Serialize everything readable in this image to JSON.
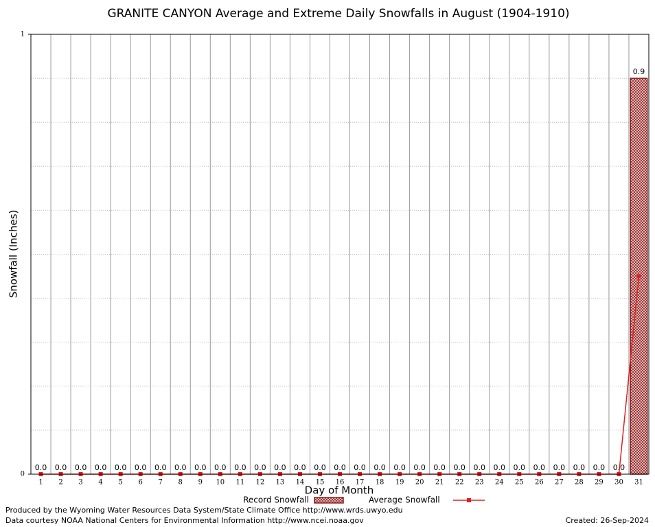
{
  "chart_data": {
    "type": "bar",
    "title": "GRANITE CANYON Average and Extreme Daily Snowfalls in August (1904-1910)",
    "x_label": "Day of Month",
    "y_label": "Snowfall (Inches)",
    "categories": [
      "1",
      "2",
      "3",
      "4",
      "5",
      "6",
      "7",
      "8",
      "9",
      "10",
      "11",
      "12",
      "13",
      "14",
      "15",
      "16",
      "17",
      "18",
      "19",
      "20",
      "21",
      "22",
      "23",
      "24",
      "25",
      "26",
      "27",
      "28",
      "29",
      "30",
      "31"
    ],
    "series": [
      {
        "name": "Record Snowfall",
        "type": "bar",
        "color": "#8b1a1a",
        "values": [
          0,
          0,
          0,
          0,
          0,
          0,
          0,
          0,
          0,
          0,
          0,
          0,
          0,
          0,
          0,
          0,
          0,
          0,
          0,
          0,
          0,
          0,
          0,
          0,
          0,
          0,
          0,
          0,
          0,
          0,
          0.9
        ],
        "value_labels": [
          "0.0",
          "0.0",
          "0.0",
          "0.0",
          "0.0",
          "0.0",
          "0.0",
          "0.0",
          "0.0",
          "0.0",
          "0.0",
          "0.0",
          "0.0",
          "0.0",
          "0.0",
          "0.0",
          "0.0",
          "0.0",
          "0.0",
          "0.0",
          "0.0",
          "0.0",
          "0.0",
          "0.0",
          "0.0",
          "0.0",
          "0.0",
          "0.0",
          "0.0",
          "0.0",
          "0.9"
        ]
      },
      {
        "name": "Average Snowfall",
        "type": "line",
        "color": "#e02020",
        "values": [
          0,
          0,
          0,
          0,
          0,
          0,
          0,
          0,
          0,
          0,
          0,
          0,
          0,
          0,
          0,
          0,
          0,
          0,
          0,
          0,
          0,
          0,
          0,
          0,
          0,
          0,
          0,
          0,
          0,
          0,
          0.45
        ]
      }
    ],
    "ylim": [
      0,
      1
    ],
    "yticks": [
      0,
      1
    ],
    "minor_yticks": [
      0.1,
      0.2,
      0.3,
      0.4,
      0.5,
      0.6,
      0.7,
      0.8,
      0.9
    ],
    "grid": true,
    "footer": {
      "credit": "Produced by the Wyoming Water Resources Data System/State Climate Office http://www.wrds.uwyo.edu",
      "source": "Data courtesy NOAA National Centers for Environmental Information http://www.ncei.noaa.gov",
      "created": "Created:  26-Sep-2024"
    }
  }
}
